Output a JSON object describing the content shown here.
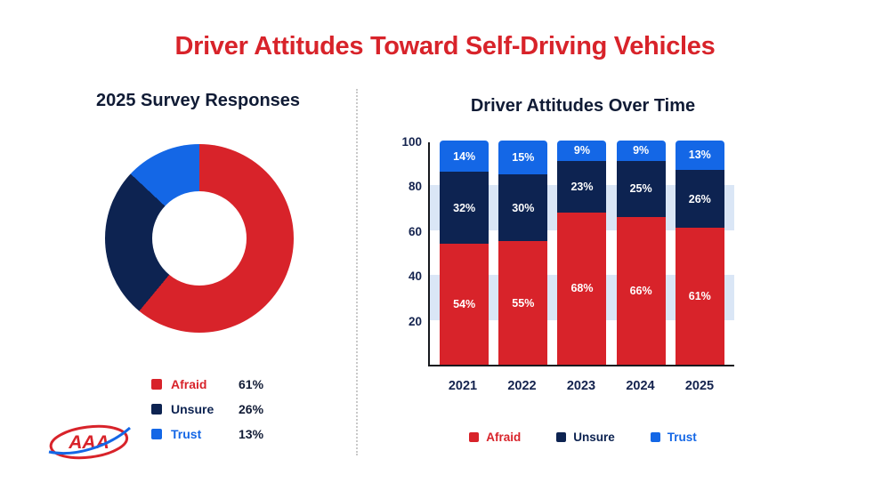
{
  "title": "Driver Attitudes Toward Self-Driving Vehicles",
  "left": {
    "heading": "2025 Survey Responses"
  },
  "right": {
    "heading": "Driver Attitudes Over Time"
  },
  "logo": {
    "text": "AAA"
  },
  "colors": {
    "red": "#d8232a",
    "navy": "#0d2351",
    "blue": "#1467e6",
    "band": "#dae6f6",
    "title": "#d8232a",
    "heading": "#101b35"
  },
  "chart_data": [
    {
      "type": "pie",
      "donut": true,
      "title": "2025 Survey Responses",
      "labels": [
        "Afraid",
        "Unsure",
        "Trust"
      ],
      "values": [
        61,
        26,
        13
      ],
      "value_labels": [
        "61%",
        "26%",
        "13%"
      ],
      "colors": [
        "#d8232a",
        "#0d2351",
        "#1467e6"
      ],
      "legend_position": "bottom",
      "start_angle_deg": 0,
      "direction": "clockwise"
    },
    {
      "type": "bar",
      "subtype": "stacked",
      "title": "Driver Attitudes Over Time",
      "categories": [
        "2021",
        "2022",
        "2023",
        "2024",
        "2025"
      ],
      "series": [
        {
          "name": "Afraid",
          "color": "#d8232a",
          "values": [
            54,
            55,
            68,
            66,
            61
          ]
        },
        {
          "name": "Unsure",
          "color": "#0d2351",
          "values": [
            32,
            30,
            23,
            25,
            26
          ]
        },
        {
          "name": "Trust",
          "color": "#1467e6",
          "values": [
            14,
            15,
            9,
            9,
            13
          ]
        }
      ],
      "data_labels": "percent",
      "ylim": [
        0,
        100
      ],
      "yticks": [
        20,
        40,
        60,
        80,
        100
      ],
      "bands": [
        [
          20,
          40
        ],
        [
          60,
          80
        ]
      ],
      "grid": "horizontal-bands",
      "legend_position": "bottom"
    }
  ]
}
